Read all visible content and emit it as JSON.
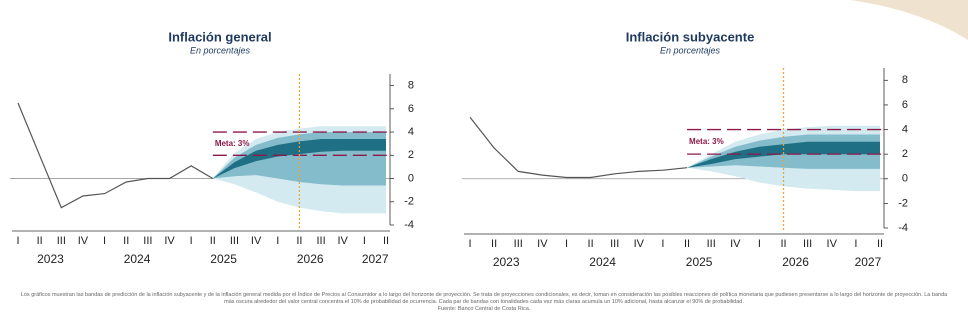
{
  "chart_data": [
    {
      "type": "fan",
      "title": "Inflación general",
      "subtitle": "En porcentajes",
      "categories": [
        "I",
        "II",
        "III",
        "IV",
        "I",
        "II",
        "III",
        "IV",
        "I",
        "II",
        "III",
        "IV",
        "I",
        "II",
        "III",
        "IV",
        "I",
        "II"
      ],
      "years": [
        "2023",
        "2024",
        "2025",
        "2026",
        "2027"
      ],
      "values": [
        6.5,
        2.0,
        -2.5,
        -1.5,
        -1.3,
        -0.3,
        0.0,
        0.0,
        1.1,
        0.0,
        null,
        null,
        null,
        null,
        null,
        null,
        null,
        null
      ],
      "line_color": "#555555",
      "fan": [
        {
          "color": "#d3eaf0",
          "upper": [
            null,
            null,
            null,
            null,
            null,
            null,
            null,
            null,
            null,
            0.0,
            2.2,
            3.4,
            4.0,
            4.3,
            4.5,
            4.5,
            4.5,
            4.5
          ],
          "lower": [
            null,
            null,
            null,
            null,
            null,
            null,
            null,
            null,
            null,
            0.0,
            -0.5,
            -1.2,
            -2.0,
            -2.5,
            -2.8,
            -3.0,
            -3.0,
            -3.0
          ]
        },
        {
          "color": "#84bccb",
          "upper": [
            null,
            null,
            null,
            null,
            null,
            null,
            null,
            null,
            null,
            0.0,
            1.8,
            2.9,
            3.5,
            3.8,
            4.0,
            4.0,
            4.0,
            4.0
          ],
          "lower": [
            null,
            null,
            null,
            null,
            null,
            null,
            null,
            null,
            null,
            0.0,
            0.2,
            0.3,
            0.0,
            -0.3,
            -0.5,
            -0.6,
            -0.6,
            -0.6
          ]
        },
        {
          "color": "#1f6f85",
          "upper": [
            null,
            null,
            null,
            null,
            null,
            null,
            null,
            null,
            null,
            0.0,
            1.4,
            2.4,
            2.9,
            3.2,
            3.4,
            3.4,
            3.4,
            3.4
          ],
          "lower": [
            null,
            null,
            null,
            null,
            null,
            null,
            null,
            null,
            null,
            0.0,
            0.9,
            1.5,
            1.9,
            2.1,
            2.3,
            2.4,
            2.4,
            2.4
          ]
        }
      ],
      "target_lines": [
        2,
        4
      ],
      "target_color": "#8b1a4a",
      "target_label": "Meta: 3%",
      "vline": 13,
      "vline_color": "#f0a030",
      "ylim": [
        -4,
        9
      ],
      "yticks": [
        -4,
        -2,
        0,
        2,
        4,
        6,
        8
      ]
    },
    {
      "type": "fan",
      "title": "Inflación subyacente",
      "subtitle": "En porcentajes",
      "categories": [
        "I",
        "II",
        "III",
        "IV",
        "I",
        "II",
        "III",
        "IV",
        "I",
        "II",
        "III",
        "IV",
        "I",
        "II",
        "III",
        "IV",
        "I",
        "II"
      ],
      "years": [
        "2023",
        "2024",
        "2025",
        "2026",
        "2027"
      ],
      "values": [
        5.0,
        2.5,
        0.6,
        0.3,
        0.1,
        0.1,
        0.4,
        0.6,
        0.7,
        0.9,
        null,
        null,
        null,
        null,
        null,
        null,
        null,
        null
      ],
      "line_color": "#555555",
      "fan": [
        {
          "color": "#d3eaf0",
          "upper": [
            null,
            null,
            null,
            null,
            null,
            null,
            null,
            null,
            null,
            0.9,
            2.0,
            3.0,
            3.6,
            4.0,
            4.2,
            4.3,
            4.3,
            4.3
          ],
          "lower": [
            null,
            null,
            null,
            null,
            null,
            null,
            null,
            null,
            null,
            0.9,
            0.6,
            0.2,
            -0.3,
            -0.6,
            -0.8,
            -0.9,
            -1.0,
            -1.0
          ]
        },
        {
          "color": "#84bccb",
          "upper": [
            null,
            null,
            null,
            null,
            null,
            null,
            null,
            null,
            null,
            0.9,
            1.8,
            2.6,
            3.1,
            3.4,
            3.6,
            3.6,
            3.6,
            3.6
          ],
          "lower": [
            null,
            null,
            null,
            null,
            null,
            null,
            null,
            null,
            null,
            0.9,
            1.0,
            1.1,
            1.0,
            0.9,
            0.8,
            0.8,
            0.8,
            0.8
          ]
        },
        {
          "color": "#1f6f85",
          "upper": [
            null,
            null,
            null,
            null,
            null,
            null,
            null,
            null,
            null,
            0.9,
            1.6,
            2.2,
            2.6,
            2.8,
            3.0,
            3.0,
            3.0,
            3.0
          ],
          "lower": [
            null,
            null,
            null,
            null,
            null,
            null,
            null,
            null,
            null,
            0.9,
            1.2,
            1.6,
            1.8,
            2.0,
            2.0,
            2.0,
            2.0,
            2.0
          ]
        }
      ],
      "target_lines": [
        2,
        4
      ],
      "target_color": "#8b1a4a",
      "target_label": "Meta: 3%",
      "vline": 13,
      "vline_color": "#f0a030",
      "ylim": [
        -4,
        9
      ],
      "yticks": [
        -4,
        -2,
        0,
        2,
        4,
        6,
        8
      ]
    }
  ],
  "footnote": "Los gráficos muestran las bandas de predicción de la inflación subyacente y de la inflación general medida por el Índice de Precios al Consumidor a lo largo del horizonte de proyección. Se trata de proyecciones condicionales, es decir, toman en consideración las posibles reacciones de política monetaria que pudiesen presentarse a lo largo del horizonte de proyección. La banda más oscura alrededor del valor central concentra el 10% de probabilidad de ocurrencia. Cada par de bandas con tonalidades cada vez más claras acumula un 10% adicional, hasta alcanzar el 90% de probabilidad.",
  "source": "Fuente: Banco Central de Costa Rica."
}
